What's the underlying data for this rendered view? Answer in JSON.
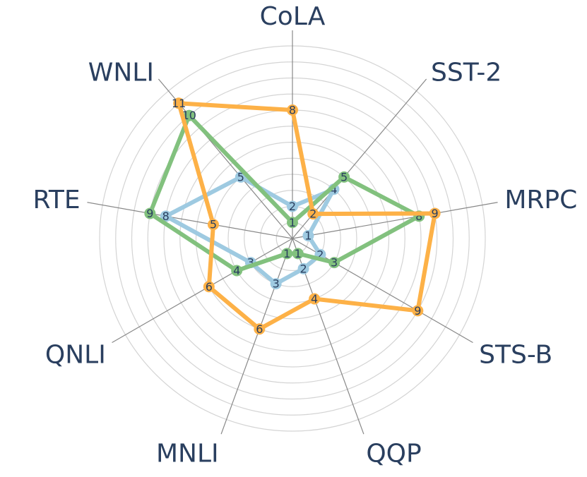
{
  "chart_data": {
    "type": "radar",
    "categories": [
      "CoLA",
      "SST-2",
      "MRPC",
      "STS-B",
      "QQP",
      "MNLI",
      "QNLI",
      "RTE",
      "WNLI"
    ],
    "series": [
      {
        "color": "#9ecae1",
        "values": [
          2,
          4,
          1,
          2,
          2,
          3,
          3,
          8,
          5
        ]
      },
      {
        "color": "#82c17e",
        "values": [
          1,
          5,
          8,
          3,
          1,
          1,
          4,
          9,
          10
        ]
      },
      {
        "color": "#fdb147",
        "values": [
          8,
          2,
          9,
          9,
          4,
          6,
          6,
          5,
          11
        ]
      }
    ],
    "rlim": [
      0,
      12
    ],
    "rticks": [
      1,
      2,
      3,
      4,
      5,
      6,
      7,
      8,
      9,
      10,
      11,
      12
    ],
    "grid": true
  }
}
